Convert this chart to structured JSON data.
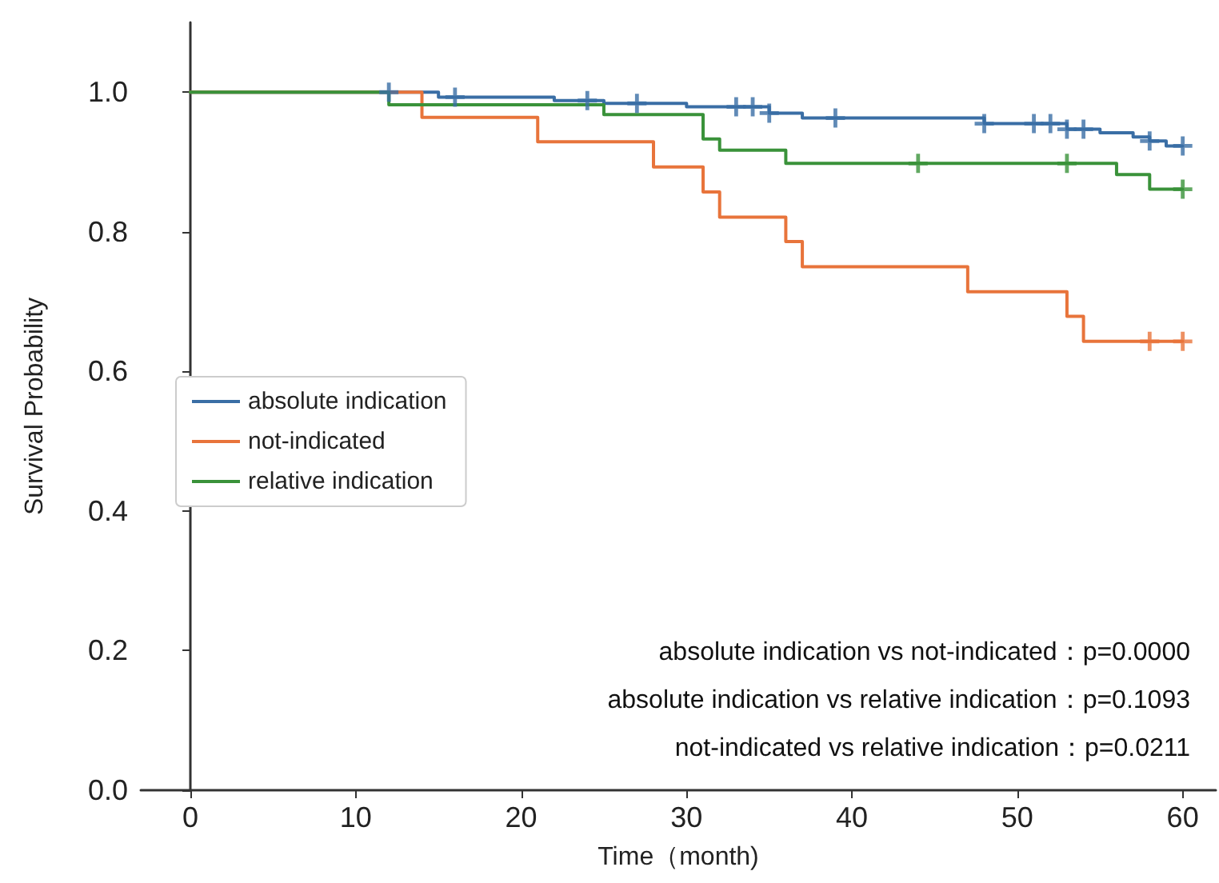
{
  "chart_data": {
    "type": "step",
    "xlabel": "Time（month)",
    "ylabel": "Survival Probability",
    "xlim": [
      -3,
      62
    ],
    "xticks": [
      0,
      10,
      20,
      30,
      40,
      50,
      60
    ],
    "ylim": [
      0,
      1.1
    ],
    "yticks": [
      {
        "value": 0,
        "label": "0.0"
      },
      0.2,
      0.4,
      0.6,
      0.8,
      {
        "value": 1,
        "label": "1.0"
      }
    ],
    "grid": false,
    "legend": "left",
    "line_style": "solid",
    "marker": "none",
    "series": [
      {
        "name": "absolute indication",
        "color": "#3a6ea5",
        "x": [
          0,
          15,
          22,
          25,
          30,
          35,
          37,
          48,
          53,
          55,
          57,
          58,
          59,
          60
        ],
        "values": [
          1,
          0.993,
          0.988,
          0.984,
          0.979,
          0.97,
          0.963,
          0.955,
          0.947,
          0.942,
          0.936,
          0.93,
          0.923,
          0.923
        ]
      },
      {
        "name": "not-indicated",
        "color": "#e8743b",
        "x": [
          0,
          14,
          21,
          28,
          31,
          32,
          36,
          37,
          47,
          53,
          54,
          60
        ],
        "values": [
          1,
          0.964,
          0.929,
          0.893,
          0.857,
          0.821,
          0.786,
          0.75,
          0.714,
          0.679,
          0.643,
          0.643
        ]
      },
      {
        "name": "relative indication",
        "color": "#3a923a",
        "x": [
          0,
          12,
          25,
          31,
          32,
          36,
          56,
          58,
          60
        ],
        "values": [
          1,
          0.982,
          0.968,
          0.933,
          0.917,
          0.898,
          0.882,
          0.861,
          0.861
        ]
      },
      {
        "type": "scatter",
        "marker": "cross",
        "color": "#3a6ea5",
        "x": [
          12,
          16,
          24,
          27,
          33,
          34,
          35,
          39,
          48,
          51,
          52,
          53,
          54,
          58,
          60
        ],
        "values": [
          1,
          0.993,
          0.988,
          0.984,
          0.979,
          0.979,
          0.97,
          0.963,
          0.955,
          0.955,
          0.955,
          0.947,
          0.947,
          0.93,
          0.923
        ]
      },
      {
        "type": "scatter",
        "marker": "cross",
        "color": "#e8743b",
        "x": [
          58,
          60
        ],
        "values": [
          0.643,
          0.643
        ]
      },
      {
        "type": "scatter",
        "marker": "cross",
        "color": "#3a923a",
        "x": [
          44,
          53,
          60
        ],
        "values": [
          0.898,
          0.898,
          0.861
        ]
      }
    ],
    "annotations": [
      "absolute indication vs not-indicated：p=0.0000",
      "absolute indication vs relative indication：p=0.1093",
      "not-indicated vs relative indication：p=0.0211"
    ]
  }
}
